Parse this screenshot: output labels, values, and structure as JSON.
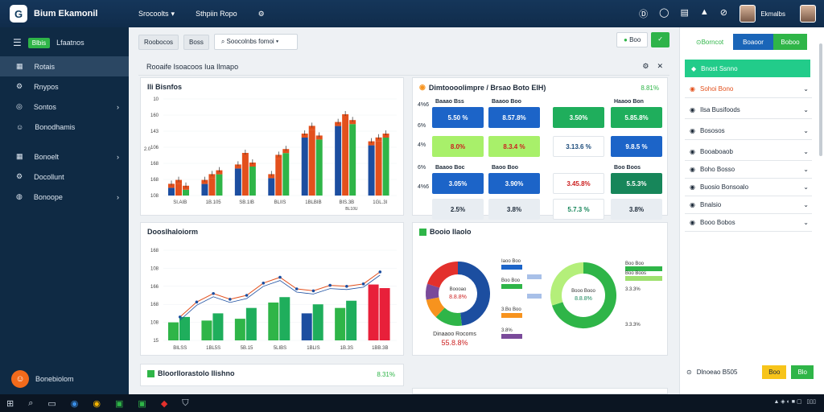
{
  "topbar": {
    "logo": "G",
    "app_title": "Bium Ekamonil",
    "nav": [
      {
        "label": "Srocoolts",
        "dropdown": true
      },
      {
        "label": "Sthpiin Ropo",
        "dropdown": false
      }
    ],
    "icons": [
      "settings-icon",
      "help-icon",
      "doc-icon",
      "alert-icon",
      "info-icon"
    ],
    "user_name": "Ekmalbs"
  },
  "sidebar": {
    "brand_chip": "Blbis",
    "brand_text": "Lfaatnos",
    "items": [
      {
        "label": "Rotais",
        "icon": "dashboard-icon",
        "active": true,
        "chevron": false
      },
      {
        "label": "Rnypos",
        "icon": "gear-icon",
        "active": false,
        "chevron": false
      },
      {
        "label": "Sontos",
        "icon": "globe-icon",
        "active": false,
        "chevron": true
      },
      {
        "label": "Bonodhamis",
        "icon": "people-icon",
        "active": false,
        "chevron": false
      },
      {
        "label": "Bonoelt",
        "icon": "grid-icon",
        "active": false,
        "chevron": true
      },
      {
        "label": "Docollunt",
        "icon": "gear-icon",
        "active": false,
        "chevron": false
      },
      {
        "label": "Bonoope",
        "icon": "user-icon",
        "active": false,
        "chevron": true
      }
    ],
    "footer_label": "Bonebiolom"
  },
  "toolbar": {
    "btn1": "Roobocos",
    "btn2": "Boss",
    "search_text": "Soocolnbs fomoi",
    "action1": "Boo",
    "action2_icon": "check-icon"
  },
  "header_row": {
    "title": "Rooaife Isoacoos Iua Ilmapo"
  },
  "bar_card": {
    "title": "Ili Bisnfos",
    "y_labels": [
      "108",
      "168",
      "168",
      "106",
      "143",
      "160",
      "10"
    ],
    "x_labels": [
      "SI.AIB",
      "1B.105",
      "SB.1IB",
      "BLIIS",
      "1BLBIB",
      "BIS.3B",
      "1GL.3I"
    ],
    "x_sub": "BL10U"
  },
  "metrics_card": {
    "title": "Dimtoooolimpre / Brsao Boto EIH)",
    "badge": "8.81%",
    "row_labels": [
      "4%6",
      "6%",
      "4%",
      "6%",
      "4%6"
    ],
    "metrics": [
      {
        "label": "Baaao Bss",
        "value": "5.50 %",
        "bg": "#1c64c8",
        "fg": "#ffffff"
      },
      {
        "label": "Baaoo Boo",
        "value": "8.57.8%",
        "bg": "#1c64c8",
        "fg": "#ffffff"
      },
      {
        "label": "",
        "value": "3.50%",
        "bg": "#1fae5c",
        "fg": "#ffffff"
      },
      {
        "label": "Haaoo Bon",
        "value": "5.85.8%",
        "bg": "#1fae5c",
        "fg": "#ffffff"
      },
      {
        "label": "",
        "value": "8.0%",
        "bg": "#a8f06a",
        "fg": "#cc2020"
      },
      {
        "label": "",
        "value": "8.3.4 %",
        "bg": "#a8f06a",
        "fg": "#cc2020"
      },
      {
        "label": "",
        "value": "3.13.6 %",
        "bg": "#ffffff",
        "fg": "#1a4a7a"
      },
      {
        "label": "",
        "value": "9.8.5 %",
        "bg": "#1c64c8",
        "fg": "#ffffff"
      },
      {
        "label": "Baaoo Boc",
        "value": "3.05%",
        "bg": "#1c64c8",
        "fg": "#ffffff"
      },
      {
        "label": "Baoo Boo",
        "value": "3.90%",
        "bg": "#1c64c8",
        "fg": "#ffffff"
      },
      {
        "label": "",
        "value": "3.45.8%",
        "bg": "#ffffff",
        "fg": "#cc2020"
      },
      {
        "label": "Boo Boos",
        "value": "5.5.3%",
        "bg": "#17865a",
        "fg": "#ffffff"
      },
      {
        "label": "",
        "value": "2.5%",
        "bg": "#e8edf2",
        "fg": "#1e2b3a"
      },
      {
        "label": "",
        "value": "3.8%",
        "bg": "#e8edf2",
        "fg": "#1e2b3a"
      },
      {
        "label": "",
        "value": "5.7.3 %",
        "bg": "#ffffff",
        "fg": "#17865a"
      },
      {
        "label": "",
        "value": "3.8%",
        "bg": "#e8edf2",
        "fg": "#1e2b3a"
      }
    ]
  },
  "combo_card": {
    "title": "Dooslhaloiorm",
    "y_labels": [
      "168",
      "108",
      "166",
      "168",
      "108",
      "15"
    ],
    "x_labels": [
      "BILSS",
      "1BL5S",
      "5B.15",
      "5LIBS",
      "1BLIS",
      "1B.3S",
      "1BB.3B"
    ]
  },
  "donut_card": {
    "title": "Booio Ilaolo",
    "left_legend": [
      {
        "label": "Iaoo Boo",
        "color": "#1c64c8"
      },
      {
        "label": "Boo Boo",
        "color": "#2fb548"
      },
      {
        "label": "3.Bo Boo",
        "color": "#f7931e"
      },
      {
        "label": "3.8%",
        "color": "#7a4a9a"
      }
    ],
    "center_label": "Boooao",
    "center_value": "8.8.8%",
    "caption": "Dinaaoo Rocoms",
    "caption_value": "55.8.8%",
    "right_center": "Booo Booo",
    "right_center_value": "8.8.8%",
    "right_legend": [
      {
        "label": "Boo Boo",
        "color": "#2fb548"
      },
      {
        "label": "Boo Boos",
        "color": "#9fe070"
      },
      {
        "label": "3.3.3%",
        "color": "#2fb548"
      },
      {
        "label": "3.3.3%",
        "color": "#2fb548"
      }
    ]
  },
  "bottom_card": {
    "title": "Bloorllorastolo Ilishno",
    "value": "8.31%"
  },
  "right_panel": {
    "tabs": [
      "Borncot",
      "Boaoor",
      "Boboo"
    ],
    "active_item": "Bnost Ssnno",
    "items": [
      {
        "label": "Sohoi Bono",
        "accent": "#e3501c"
      },
      {
        "label": "Ilsa Busifoods",
        "accent": "#1e2b3a"
      },
      {
        "label": "Bososos",
        "accent": "#1e2b3a"
      },
      {
        "label": "Booaboaob",
        "accent": "#1e2b3a"
      },
      {
        "label": "Boho Bosso",
        "accent": "#1e2b3a"
      },
      {
        "label": "Buosio Bonsoalo",
        "accent": "#1e2b3a"
      },
      {
        "label": "Bnalsio",
        "accent": "#1e2b3a"
      },
      {
        "label": "Booo Bobos",
        "accent": "#1e2b3a"
      }
    ],
    "footer_label": "Dlnoeao B505",
    "footer_btn1": "Boo",
    "footer_btn2": "Blo"
  },
  "chart_data": [
    {
      "type": "bar",
      "categories": [
        "SI.AIB",
        "1B.105",
        "SB.1IB",
        "BLIIS",
        "1BLBIB",
        "BIS.3B",
        "1GL.3I"
      ],
      "series": [
        {
          "values": [
            8,
            12,
            28,
            18,
            60,
            72,
            52
          ]
        },
        {
          "values": [
            12,
            18,
            40,
            38,
            68,
            80,
            56
          ]
        },
        {
          "values": [
            6,
            22,
            30,
            44,
            58,
            74,
            60
          ]
        }
      ],
      "ylim": [
        0,
        100
      ]
    },
    {
      "type": "bar",
      "categories": [
        "BILSS",
        "1BL5S",
        "5B.15",
        "5LIBS",
        "1BLIS",
        "1B.3S",
        "1BB.3B"
      ],
      "series": [
        {
          "values": [
            20,
            22,
            24,
            42,
            30,
            36,
            62
          ]
        },
        {
          "values": [
            26,
            30,
            36,
            48,
            40,
            44,
            58
          ]
        }
      ],
      "line": [
        26,
        52,
        50,
        70,
        55,
        60,
        76
      ],
      "ylim": [
        0,
        100
      ]
    },
    {
      "type": "pie",
      "labels": [
        "Iaoo Boo",
        "Boo Boo",
        "3.Bo Boo",
        "3.8%",
        "Red"
      ],
      "values": [
        48,
        14,
        10,
        8,
        20
      ]
    },
    {
      "type": "pie",
      "labels": [
        "Boo Boo",
        "Boo Boos"
      ],
      "values": [
        70,
        30
      ]
    }
  ]
}
